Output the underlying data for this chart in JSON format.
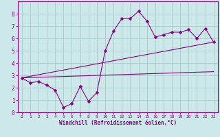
{
  "title": "",
  "xlabel": "Windchill (Refroidissement éolien,°C)",
  "ylabel": "",
  "bg_color": "#cde8e8",
  "line_color": "#880088",
  "grid_color": "#aacccc",
  "spine_color": "#880088",
  "xlim": [
    -0.5,
    23.5
  ],
  "ylim": [
    0,
    9
  ],
  "xticks": [
    0,
    1,
    2,
    3,
    4,
    5,
    6,
    7,
    8,
    9,
    10,
    11,
    12,
    13,
    14,
    15,
    16,
    17,
    18,
    19,
    20,
    21,
    22,
    23
  ],
  "yticks": [
    0,
    1,
    2,
    3,
    4,
    5,
    6,
    7,
    8
  ],
  "main_data_x": [
    0,
    1,
    2,
    3,
    4,
    5,
    6,
    7,
    8,
    9,
    10,
    11,
    12,
    13,
    14,
    15,
    16,
    17,
    18,
    19,
    20,
    21,
    22,
    23
  ],
  "main_data_y": [
    2.8,
    2.4,
    2.5,
    2.2,
    1.8,
    0.4,
    0.7,
    2.1,
    0.9,
    1.6,
    5.0,
    6.6,
    7.6,
    7.6,
    8.2,
    7.4,
    6.1,
    6.3,
    6.5,
    6.5,
    6.7,
    6.0,
    6.8,
    5.7
  ],
  "trend1_x": [
    0,
    23
  ],
  "trend1_y": [
    2.8,
    5.7
  ],
  "trend2_x": [
    0,
    23
  ],
  "trend2_y": [
    2.8,
    3.3
  ],
  "marker_size": 2.5,
  "line_width": 0.8,
  "xlabel_fontsize": 5.5,
  "tick_fontsize_x": 4.5,
  "tick_fontsize_y": 5.5
}
